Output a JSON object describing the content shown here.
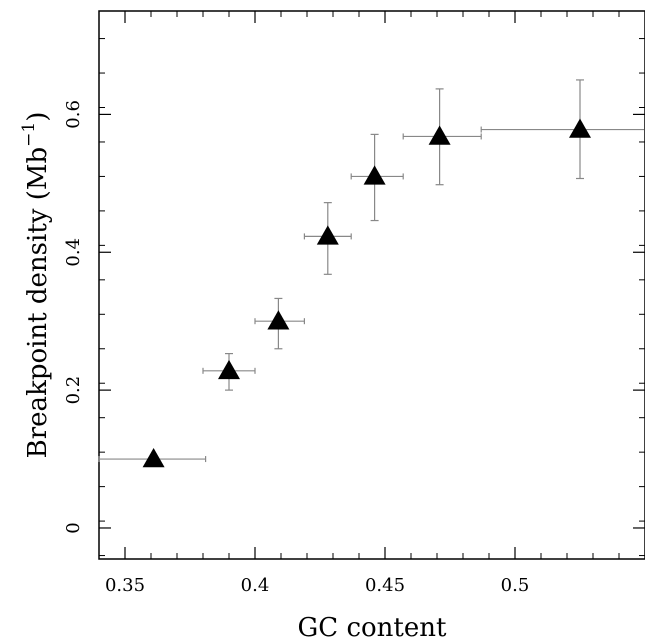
{
  "chart_data": {
    "type": "scatter",
    "title": "",
    "xlabel": "GC content",
    "ylabel_main": "Breakpoint density (Mb",
    "ylabel_sup": "−1",
    "ylabel_close": ")",
    "xlim": [
      0.34,
      0.55
    ],
    "ylim": [
      -0.045,
      0.75
    ],
    "xticks": [
      {
        "value": 0.35,
        "label": "0.35"
      },
      {
        "value": 0.4,
        "label": "0.4"
      },
      {
        "value": 0.45,
        "label": "0.45"
      },
      {
        "value": 0.5,
        "label": "0.5"
      }
    ],
    "yticks": [
      {
        "value": 0,
        "label": "0"
      },
      {
        "value": 0.2,
        "label": "0.2"
      },
      {
        "value": 0.4,
        "label": "0.4"
      },
      {
        "value": 0.6,
        "label": "0.6"
      }
    ],
    "grid": false,
    "marker": "filled-triangle",
    "marker_color": "#000000",
    "errorbar_color": "#888888",
    "points": [
      {
        "x": 0.361,
        "y": 0.1,
        "x_low": 0.34,
        "x_high": 0.381,
        "y_low": 0.09,
        "y_high": 0.104
      },
      {
        "x": 0.39,
        "y": 0.228,
        "x_low": 0.38,
        "x_high": 0.4,
        "y_low": 0.2,
        "y_high": 0.253
      },
      {
        "x": 0.409,
        "y": 0.3,
        "x_low": 0.4,
        "x_high": 0.419,
        "y_low": 0.26,
        "y_high": 0.333
      },
      {
        "x": 0.428,
        "y": 0.423,
        "x_low": 0.419,
        "x_high": 0.437,
        "y_low": 0.368,
        "y_high": 0.472
      },
      {
        "x": 0.446,
        "y": 0.51,
        "x_low": 0.437,
        "x_high": 0.457,
        "y_low": 0.446,
        "y_high": 0.571
      },
      {
        "x": 0.471,
        "y": 0.568,
        "x_low": 0.457,
        "x_high": 0.487,
        "y_low": 0.498,
        "y_high": 0.637
      },
      {
        "x": 0.525,
        "y": 0.578,
        "x_low": 0.487,
        "x_high": 0.55,
        "y_low": 0.507,
        "y_high": 0.65
      }
    ]
  }
}
